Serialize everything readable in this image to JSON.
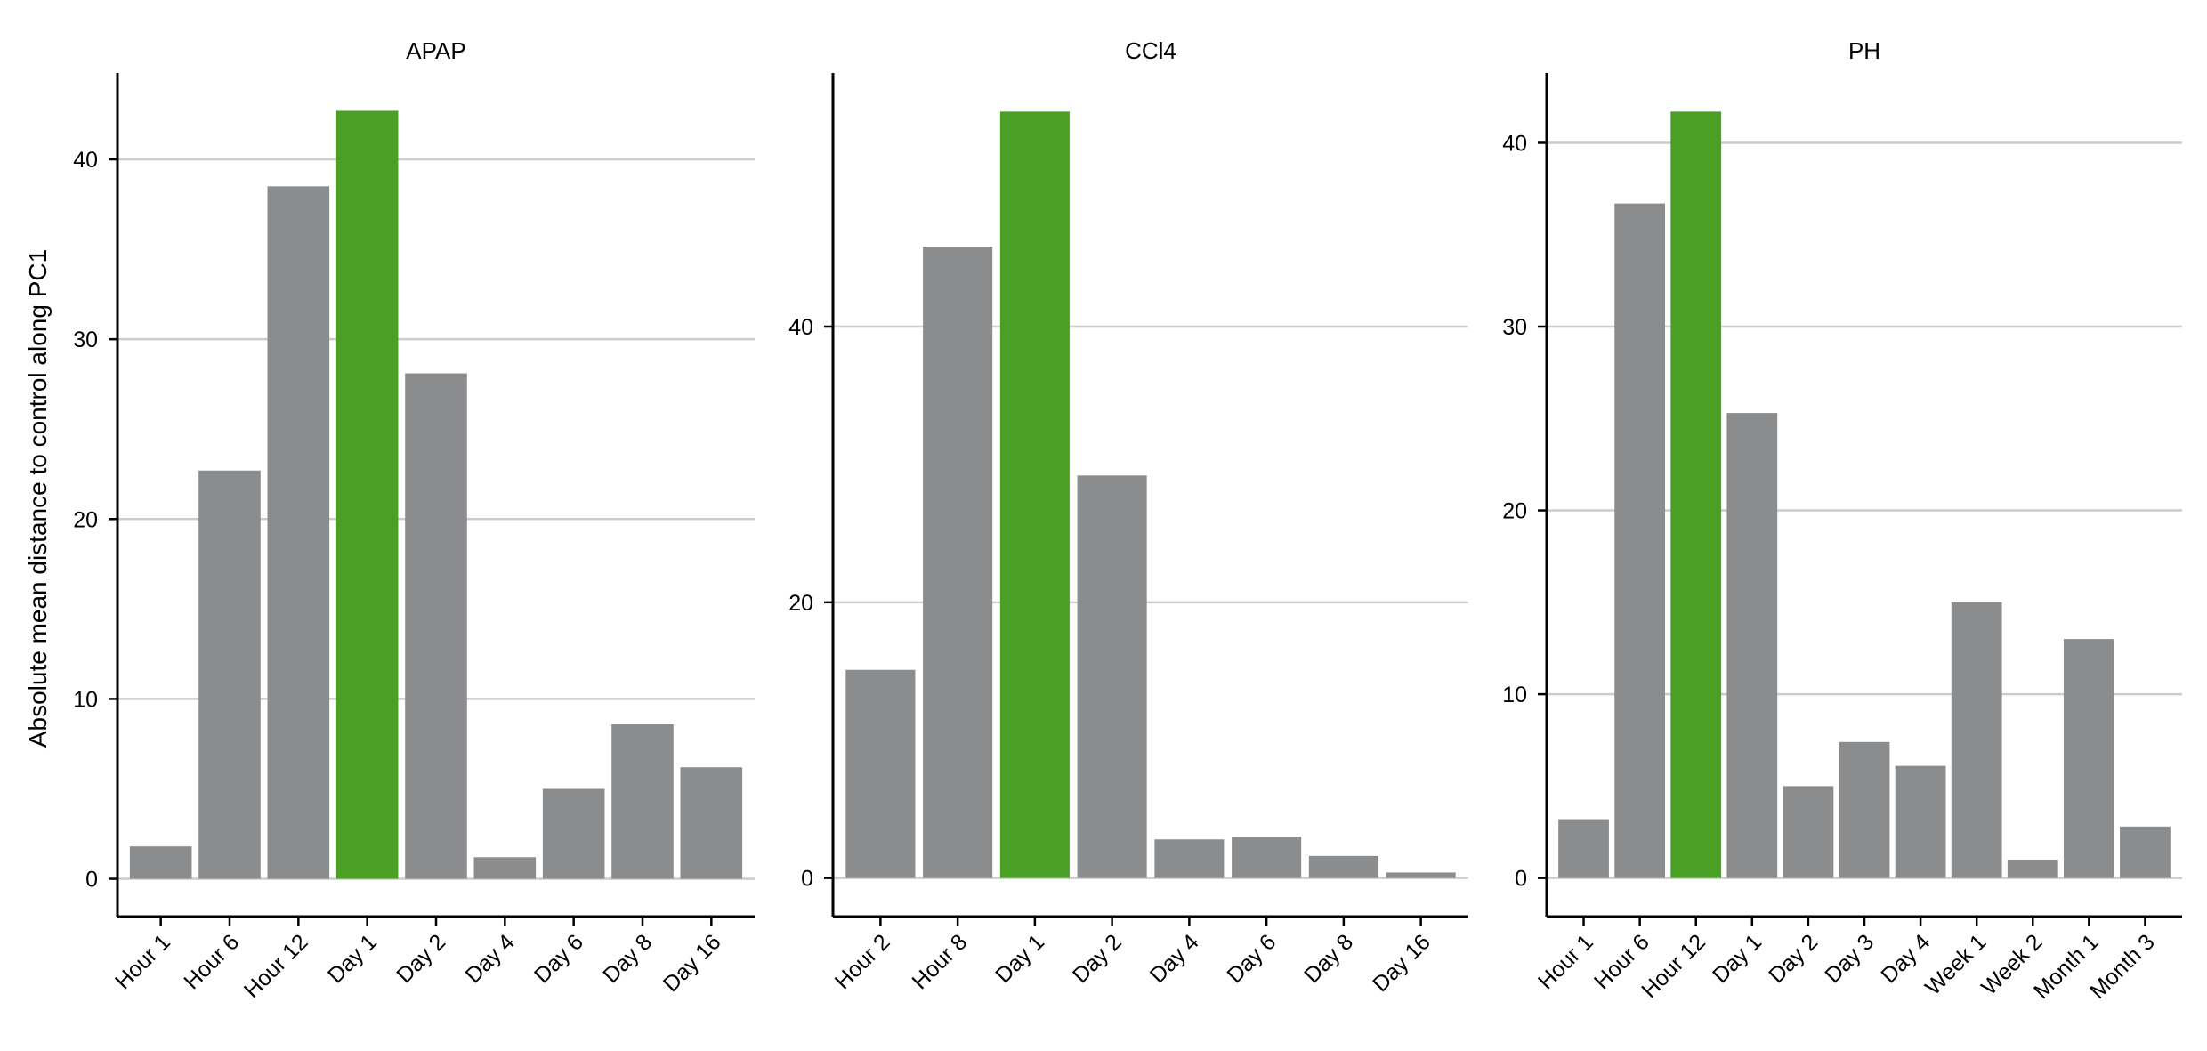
{
  "colors": {
    "default_bar": "#8b8c8d",
    "highlight_bar": "#4aa024",
    "grid": "#cccccc",
    "axis": "#000000"
  },
  "shared_ylabel": "Absolute mean distance to control along PC1",
  "chart_data": [
    {
      "type": "bar",
      "title": "APAP",
      "categories": [
        "Hour 1",
        "Hour 6",
        "Hour 12",
        "Day 1",
        "Day 2",
        "Day 4",
        "Day 6",
        "Day 8",
        "Day 16"
      ],
      "values": [
        1.8,
        22.7,
        38.5,
        42.7,
        28.1,
        1.2,
        5.0,
        8.6,
        6.2
      ],
      "highlight": "Day 1",
      "yticks": [
        0,
        10,
        20,
        30,
        40
      ],
      "ylim": [
        -2.1,
        44.8
      ],
      "grid": true,
      "xlabel": "",
      "ylabel": "Absolute mean distance to control along PC1"
    },
    {
      "type": "bar",
      "title": "CCl4",
      "categories": [
        "Hour 2",
        "Hour 8",
        "Day 1",
        "Day 2",
        "Day 4",
        "Day 6",
        "Day 8",
        "Day 16"
      ],
      "values": [
        15.1,
        45.8,
        55.6,
        29.2,
        2.8,
        3.0,
        1.6,
        0.4
      ],
      "highlight": "Day 1",
      "yticks": [
        0,
        20,
        40
      ],
      "ylim": [
        -2.8,
        58.4
      ],
      "grid": true,
      "xlabel": "",
      "ylabel": ""
    },
    {
      "type": "bar",
      "title": "PH",
      "categories": [
        "Hour 1",
        "Hour 6",
        "Hour 12",
        "Day 1",
        "Day 2",
        "Day 3",
        "Day 4",
        "Week 1",
        "Week 2",
        "Month 1",
        "Month 3"
      ],
      "values": [
        3.2,
        36.7,
        41.7,
        25.3,
        5.0,
        7.4,
        6.1,
        15.0,
        1.0,
        13.0,
        2.8
      ],
      "highlight": "Hour 12",
      "yticks": [
        0,
        10,
        20,
        30,
        40
      ],
      "ylim": [
        -2.1,
        43.8
      ],
      "grid": true,
      "xlabel": "",
      "ylabel": ""
    }
  ]
}
